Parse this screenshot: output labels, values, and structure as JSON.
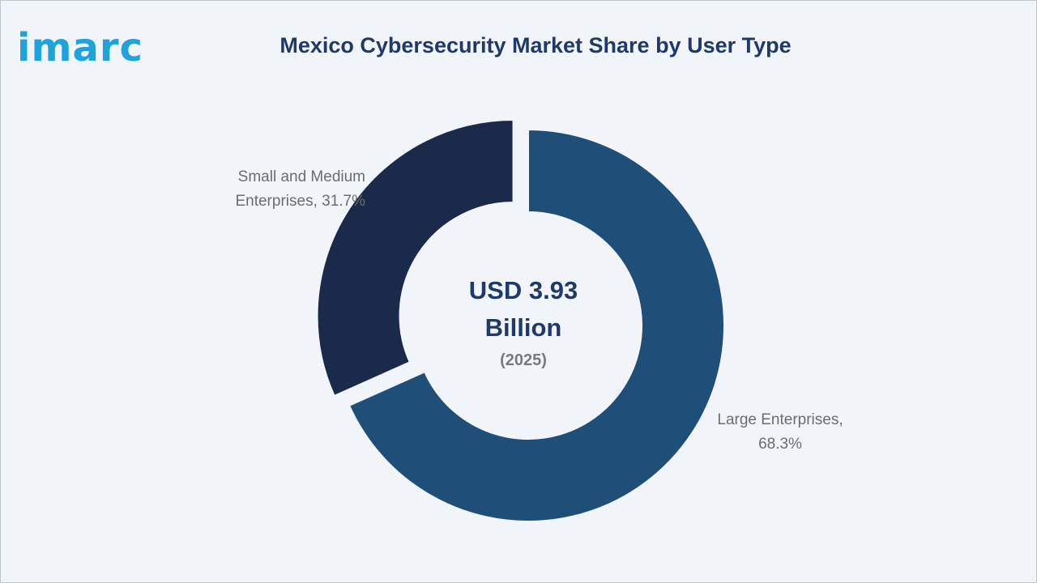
{
  "logo": {
    "text": "imarc"
  },
  "chart_data": {
    "type": "pie",
    "variant": "donut",
    "title": "Mexico Cybersecurity Market Share by User Type",
    "center_value": "USD 3.93 Billion",
    "center_year": "(2025)",
    "slices": [
      {
        "label": "Large Enterprises",
        "value": 68.3,
        "display": "Large Enterprises, 68.3%",
        "color": "#1f4e79",
        "exploded": false
      },
      {
        "label": "Small and Medium Enterprises",
        "value": 31.7,
        "display": "Small and Medium Enterprises, 31.7%",
        "color": "#1b2a4a",
        "exploded": true
      }
    ],
    "legend": "none"
  }
}
